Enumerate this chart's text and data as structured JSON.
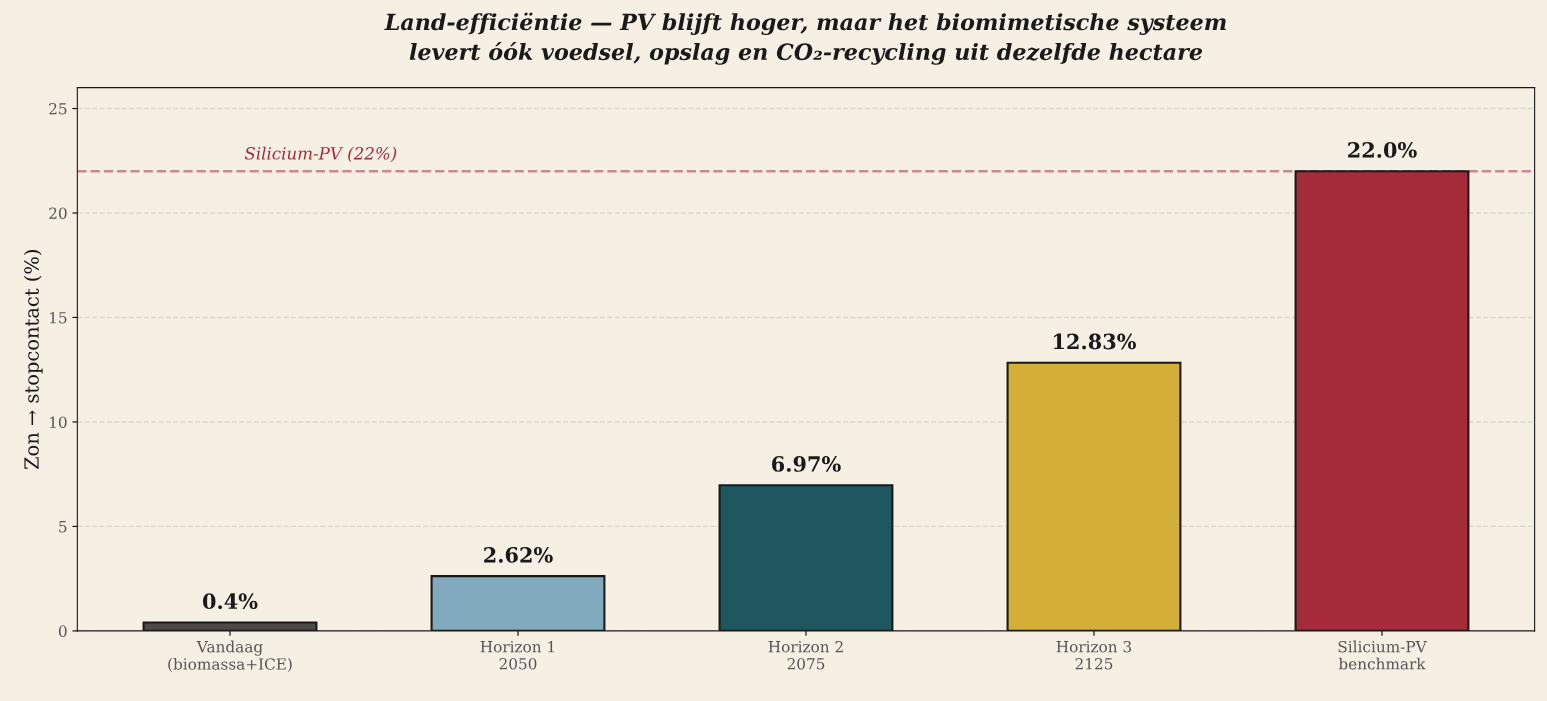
{
  "chart_data": {
    "type": "bar",
    "title": "Land-efficiëntie — PV blijft hoger, maar het biomimetische systeem\nlevert óók voedsel, opslag en CO₂-recycling uit dezelfde hectare",
    "ylabel": "Zon → stopcontact (%)",
    "categories": [
      "Vandaag\n(biomassa+ICE)",
      "Horizon 1\n2050",
      "Horizon 2\n2075",
      "Horizon 3\n2125",
      "Silicium-PV\nbenchmark"
    ],
    "values": [
      0.4,
      2.62,
      6.97,
      12.83,
      22.0
    ],
    "colors": [
      "#4d4b48",
      "#82aabe",
      "#1e5760",
      "#d4af37",
      "#a52b3a"
    ],
    "value_labels": [
      "0.4%",
      "2.62%",
      "6.97%",
      "12.83%",
      "22.0%"
    ],
    "ylim": [
      0,
      26
    ],
    "yticks": [
      0,
      5,
      10,
      15,
      20,
      25
    ],
    "ref_lines": [
      {
        "axis": "y",
        "value": 22,
        "label": "Silicium-PV (22%)",
        "color": "#c98a8c",
        "line_style": "dashed"
      }
    ],
    "grid": "y",
    "legend": false
  }
}
